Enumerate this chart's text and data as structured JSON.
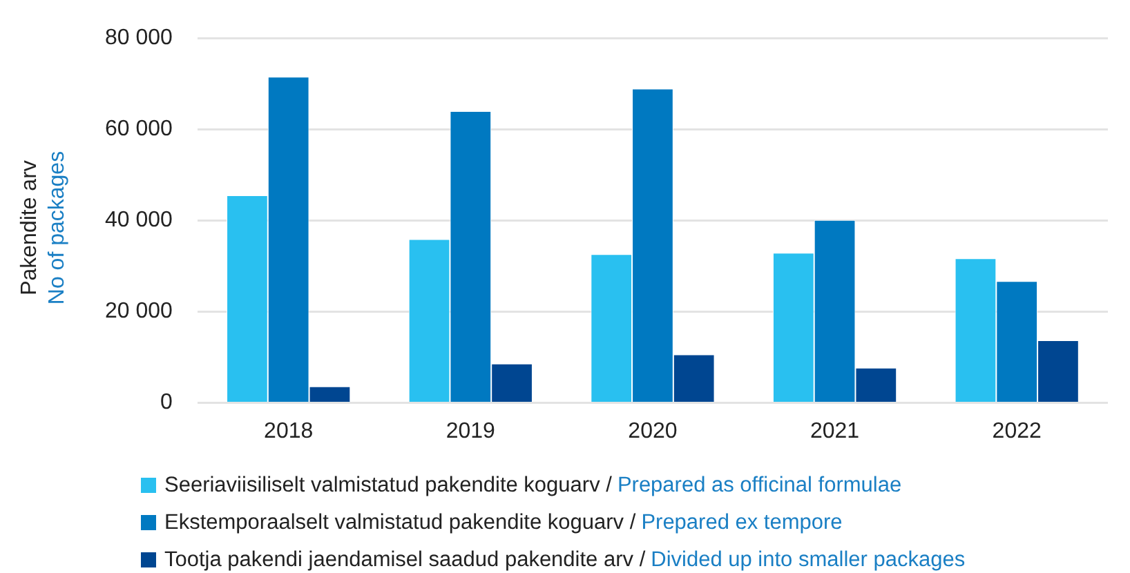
{
  "chart_data": {
    "type": "bar",
    "ylabel": "Pakendite arv\nNo of packages",
    "categories": [
      "2018",
      "2019",
      "2020",
      "2021",
      "2022"
    ],
    "series": [
      {
        "name": "Seeriaviisiliselt valmistatud pakendite koguarv / Prepared as officinal formulae",
        "color": "#29c0f0",
        "values": [
          45500,
          35900,
          32600,
          32900,
          31700
        ]
      },
      {
        "name": "Ekstemporaalselt valmistatud pakendite koguarv / Prepared ex tempore",
        "color": "#0079c1",
        "values": [
          71500,
          64000,
          68900,
          40100,
          26700
        ]
      },
      {
        "name": "Tootja pakendi jaendamisel saadud pakendite arv / Divided up into smaller packages",
        "color": "#004691",
        "values": [
          3600,
          8600,
          10600,
          7700,
          13700
        ]
      }
    ],
    "ylim": [
      0,
      80000
    ],
    "yticks": [
      {
        "value": 0,
        "label": "0"
      },
      {
        "value": 20000,
        "label": "20 000"
      },
      {
        "value": 40000,
        "label": "40 000"
      },
      {
        "value": 60000,
        "label": "60 000"
      },
      {
        "value": 80000,
        "label": "80 000"
      }
    ],
    "grid": "y",
    "legend": "bottom"
  }
}
